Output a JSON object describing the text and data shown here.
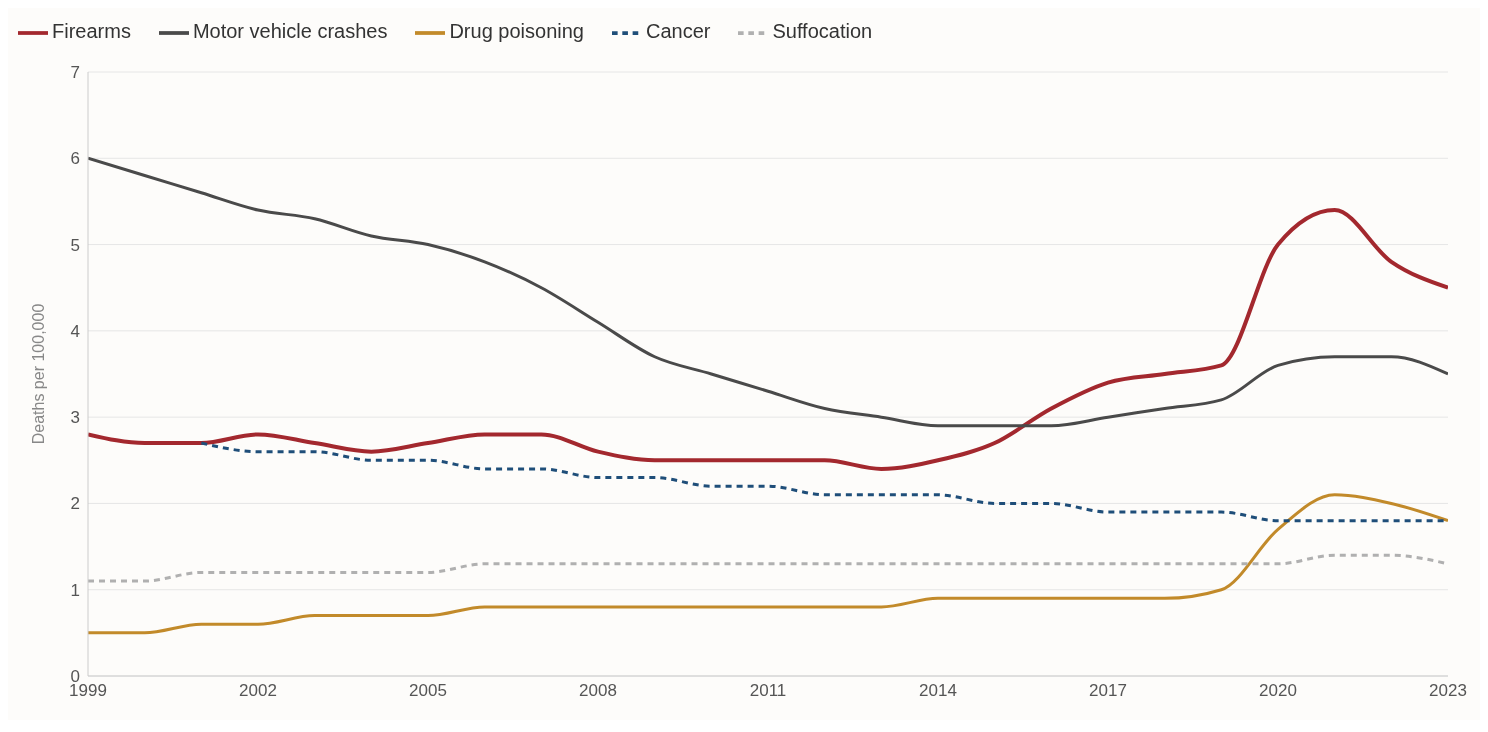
{
  "chart_data": {
    "type": "line",
    "ylabel": "Deaths per 100,000",
    "x": [
      1999,
      2000,
      2001,
      2002,
      2003,
      2004,
      2005,
      2006,
      2007,
      2008,
      2009,
      2010,
      2011,
      2012,
      2013,
      2014,
      2015,
      2016,
      2017,
      2018,
      2019,
      2020,
      2021,
      2022,
      2023
    ],
    "series": [
      {
        "name": "Firearms",
        "color": "#a3282e",
        "line_style": "solid",
        "values": [
          2.8,
          2.7,
          2.7,
          2.8,
          2.7,
          2.6,
          2.7,
          2.8,
          2.8,
          2.6,
          2.5,
          2.5,
          2.5,
          2.5,
          2.4,
          2.5,
          2.7,
          3.1,
          3.4,
          3.5,
          3.6,
          5.0,
          5.4,
          4.8,
          4.5
        ]
      },
      {
        "name": "Motor vehicle crashes",
        "color": "#4a4a4a",
        "line_style": "solid",
        "values": [
          6.0,
          5.8,
          5.6,
          5.4,
          5.3,
          5.1,
          5.0,
          4.8,
          4.5,
          4.1,
          3.7,
          3.5,
          3.3,
          3.1,
          3.0,
          2.9,
          2.9,
          2.9,
          3.0,
          3.1,
          3.2,
          3.6,
          3.7,
          3.7,
          3.5
        ]
      },
      {
        "name": "Drug poisoning",
        "color": "#c28a2a",
        "line_style": "solid",
        "values": [
          0.5,
          0.5,
          0.6,
          0.6,
          0.7,
          0.7,
          0.7,
          0.8,
          0.8,
          0.8,
          0.8,
          0.8,
          0.8,
          0.8,
          0.8,
          0.9,
          0.9,
          0.9,
          0.9,
          0.9,
          1.0,
          1.7,
          2.1,
          2.0,
          1.8
        ]
      },
      {
        "name": "Cancer",
        "color": "#1f4e79",
        "line_style": "dashed",
        "values": [
          null,
          null,
          2.7,
          2.6,
          2.6,
          2.5,
          2.5,
          2.4,
          2.4,
          2.3,
          2.3,
          2.2,
          2.2,
          2.1,
          2.1,
          2.1,
          2.0,
          2.0,
          1.9,
          1.9,
          1.9,
          1.8,
          1.8,
          1.8,
          1.8
        ]
      },
      {
        "name": "Suffocation",
        "color": "#b0b0b0",
        "line_style": "dashed",
        "values": [
          1.1,
          1.1,
          1.2,
          1.2,
          1.2,
          1.2,
          1.2,
          1.3,
          1.3,
          1.3,
          1.3,
          1.3,
          1.3,
          1.3,
          1.3,
          1.3,
          1.3,
          1.3,
          1.3,
          1.3,
          1.3,
          1.3,
          1.4,
          1.4,
          1.3
        ]
      }
    ],
    "xlim": [
      1999,
      2023
    ],
    "xticks": [
      1999,
      2002,
      2005,
      2008,
      2011,
      2014,
      2017,
      2020,
      2023
    ],
    "ylim": [
      0,
      7
    ],
    "yticks": [
      0,
      1,
      2,
      3,
      4,
      5,
      6,
      7
    ],
    "grid": "y",
    "legend": "top left",
    "marker": "none"
  }
}
